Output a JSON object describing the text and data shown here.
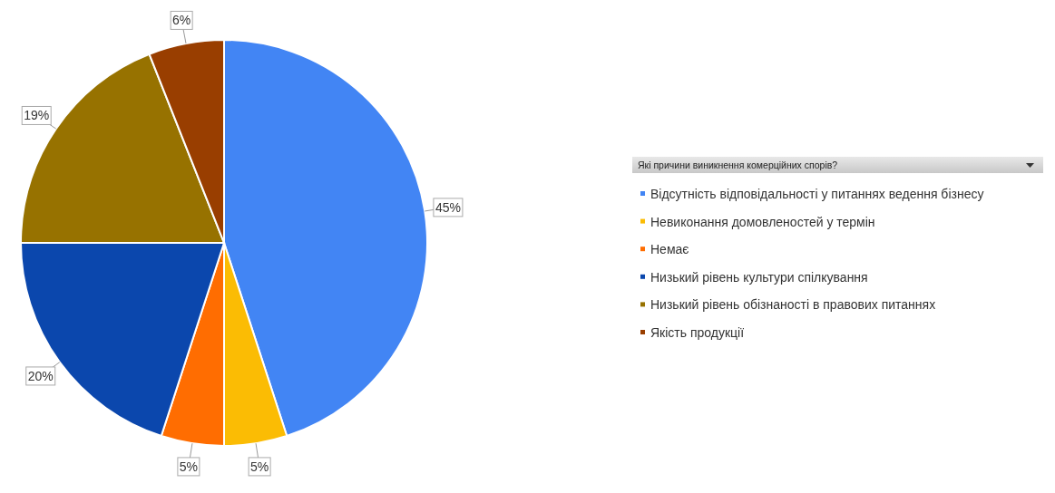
{
  "chart_data": {
    "type": "pie",
    "legend_title": "Які причини виникнення комерційних спорів?",
    "legend": "right",
    "categories": [
      "Відсутність відповідальності у питаннях ведення бізнесу",
      "Невиконання домовленостей у термін",
      "Немає",
      "Низький рівень культури спілкування",
      "Низький рівень обізнаності в правових питаннях",
      "Якість продукції"
    ],
    "values": [
      45,
      5,
      5,
      20,
      19,
      6
    ],
    "colors": [
      "#4285f4",
      "#fbbc04",
      "#ff6d01",
      "#0b47ad",
      "#977200",
      "#993e00"
    ],
    "value_labels": [
      "45%",
      "5%",
      "5%",
      "20%",
      "19%",
      "6%"
    ]
  }
}
